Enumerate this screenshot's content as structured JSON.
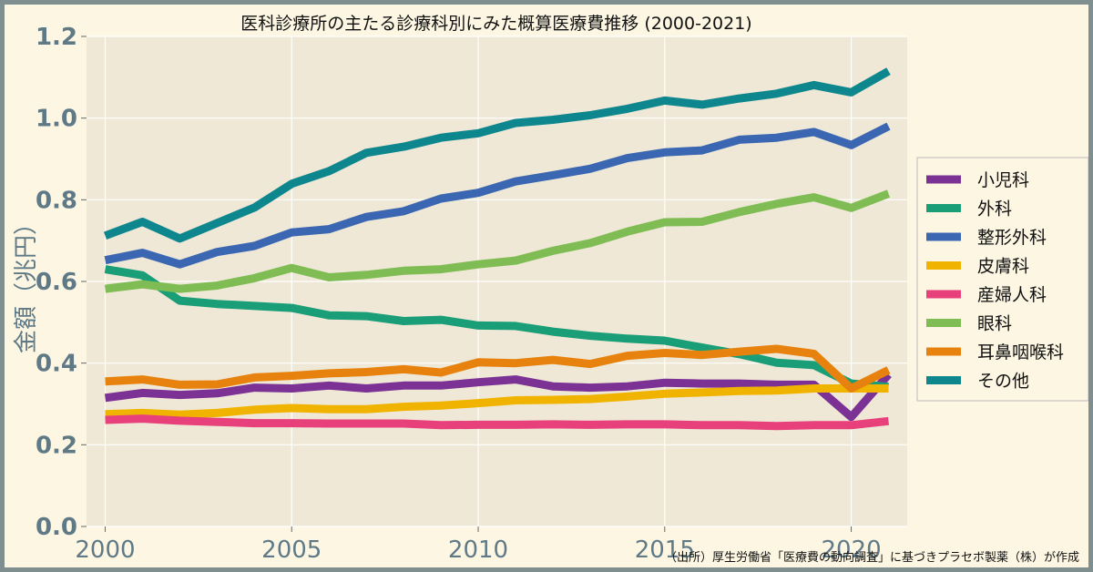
{
  "chart_data": {
    "type": "line",
    "title": "医科診療所の主たる診療科別にみた概算医療費推移 (2000-2021)",
    "ylabel": "金額（兆円）",
    "xlabel": "",
    "ylim": [
      0.0,
      1.2
    ],
    "xlim": [
      1999.5,
      2021.5
    ],
    "yticks": [
      "0.0",
      "0.2",
      "0.4",
      "0.6",
      "0.8",
      "1.0",
      "1.2"
    ],
    "xticks": [
      "2000",
      "2005",
      "2010",
      "2015",
      "2020"
    ],
    "grid": true,
    "legend_position": "right",
    "x": [
      2000,
      2001,
      2002,
      2003,
      2004,
      2005,
      2006,
      2007,
      2008,
      2009,
      2010,
      2011,
      2012,
      2013,
      2014,
      2015,
      2016,
      2017,
      2018,
      2019,
      2020,
      2021
    ],
    "series": [
      {
        "name": "小児科",
        "color": "#7b3294",
        "values": [
          0.315,
          0.327,
          0.322,
          0.326,
          0.34,
          0.338,
          0.345,
          0.338,
          0.345,
          0.345,
          0.353,
          0.36,
          0.343,
          0.34,
          0.343,
          0.352,
          0.35,
          0.35,
          0.347,
          0.347,
          0.268,
          0.372
        ]
      },
      {
        "name": "外科",
        "color": "#1a9e77",
        "values": [
          0.63,
          0.615,
          0.553,
          0.545,
          0.54,
          0.535,
          0.517,
          0.515,
          0.503,
          0.506,
          0.492,
          0.491,
          0.477,
          0.467,
          0.46,
          0.455,
          0.438,
          0.422,
          0.401,
          0.395,
          0.35,
          0.342
        ]
      },
      {
        "name": "整形外科",
        "color": "#3a66b2",
        "values": [
          0.652,
          0.67,
          0.642,
          0.672,
          0.687,
          0.72,
          0.728,
          0.758,
          0.772,
          0.803,
          0.817,
          0.845,
          0.86,
          0.876,
          0.902,
          0.916,
          0.921,
          0.947,
          0.952,
          0.966,
          0.934,
          0.98
        ]
      },
      {
        "name": "皮膚科",
        "color": "#f0b400",
        "values": [
          0.275,
          0.278,
          0.274,
          0.278,
          0.286,
          0.29,
          0.287,
          0.287,
          0.293,
          0.296,
          0.302,
          0.309,
          0.31,
          0.312,
          0.318,
          0.325,
          0.328,
          0.332,
          0.333,
          0.338,
          0.338,
          0.338
        ]
      },
      {
        "name": "産婦人科",
        "color": "#e8407a",
        "values": [
          0.261,
          0.264,
          0.259,
          0.256,
          0.253,
          0.253,
          0.252,
          0.252,
          0.252,
          0.248,
          0.249,
          0.249,
          0.25,
          0.249,
          0.25,
          0.25,
          0.248,
          0.248,
          0.246,
          0.248,
          0.248,
          0.258
        ]
      },
      {
        "name": "眼科",
        "color": "#7fbd54",
        "values": [
          0.582,
          0.593,
          0.582,
          0.59,
          0.608,
          0.633,
          0.61,
          0.616,
          0.626,
          0.63,
          0.642,
          0.651,
          0.675,
          0.694,
          0.722,
          0.745,
          0.746,
          0.77,
          0.79,
          0.806,
          0.78,
          0.815
        ]
      },
      {
        "name": "耳鼻咽喉科",
        "color": "#e8820e",
        "values": [
          0.355,
          0.36,
          0.347,
          0.348,
          0.365,
          0.369,
          0.375,
          0.378,
          0.385,
          0.377,
          0.402,
          0.4,
          0.408,
          0.398,
          0.418,
          0.425,
          0.42,
          0.428,
          0.435,
          0.423,
          0.338,
          0.383
        ]
      },
      {
        "name": "その他",
        "color": "#0e868e",
        "values": [
          0.712,
          0.746,
          0.705,
          0.743,
          0.781,
          0.839,
          0.87,
          0.915,
          0.93,
          0.952,
          0.963,
          0.988,
          0.996,
          1.007,
          1.023,
          1.043,
          1.033,
          1.048,
          1.06,
          1.081,
          1.063,
          1.115
        ]
      }
    ]
  },
  "footer": {
    "source": "（出所）厚生労働省「医療費の動向調査」に基づきプラセボ製薬（株）が作成"
  }
}
